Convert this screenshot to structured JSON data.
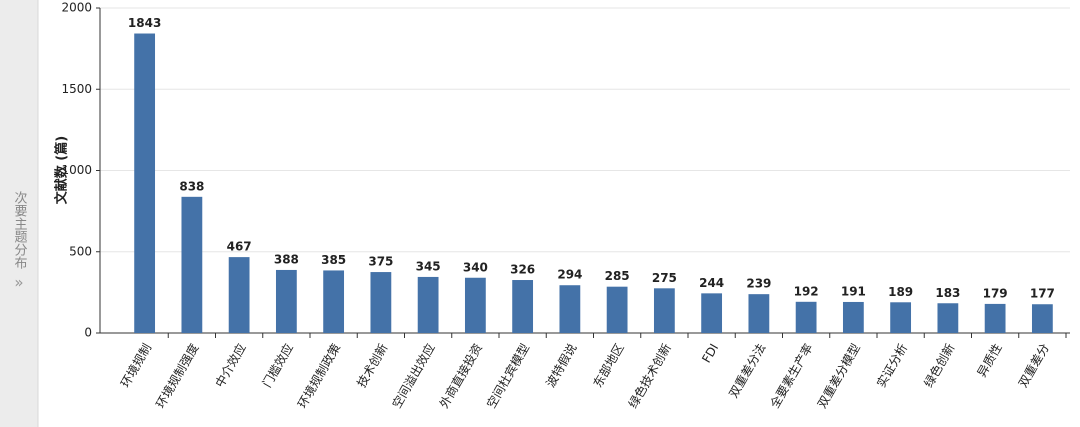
{
  "sidebar": {
    "label": "次要主题分布",
    "toggle": "»"
  },
  "chart_data": {
    "type": "bar",
    "y_label": "文献数 (篇)",
    "categories": [
      "环境规制",
      "环境规制强度",
      "中介效应",
      "门槛效应",
      "环境规制政策",
      "技术创新",
      "空间溢出效应",
      "外商直接投资",
      "空间杜宾模型",
      "波特假说",
      "东部地区",
      "绿色技术创新",
      "FDI",
      "双重差分法",
      "全要素生产率",
      "双重差分模型",
      "实证分析",
      "绿色创新",
      "异质性",
      "双重差分"
    ],
    "values": [
      1843,
      838,
      467,
      388,
      385,
      375,
      345,
      340,
      326,
      294,
      285,
      275,
      244,
      239,
      192,
      191,
      189,
      183,
      179,
      177
    ],
    "color": "#4472a8",
    "ylim": [
      0,
      2000
    ],
    "yticks": [
      0,
      500,
      1000,
      1500,
      2000
    ],
    "grid": true
  }
}
